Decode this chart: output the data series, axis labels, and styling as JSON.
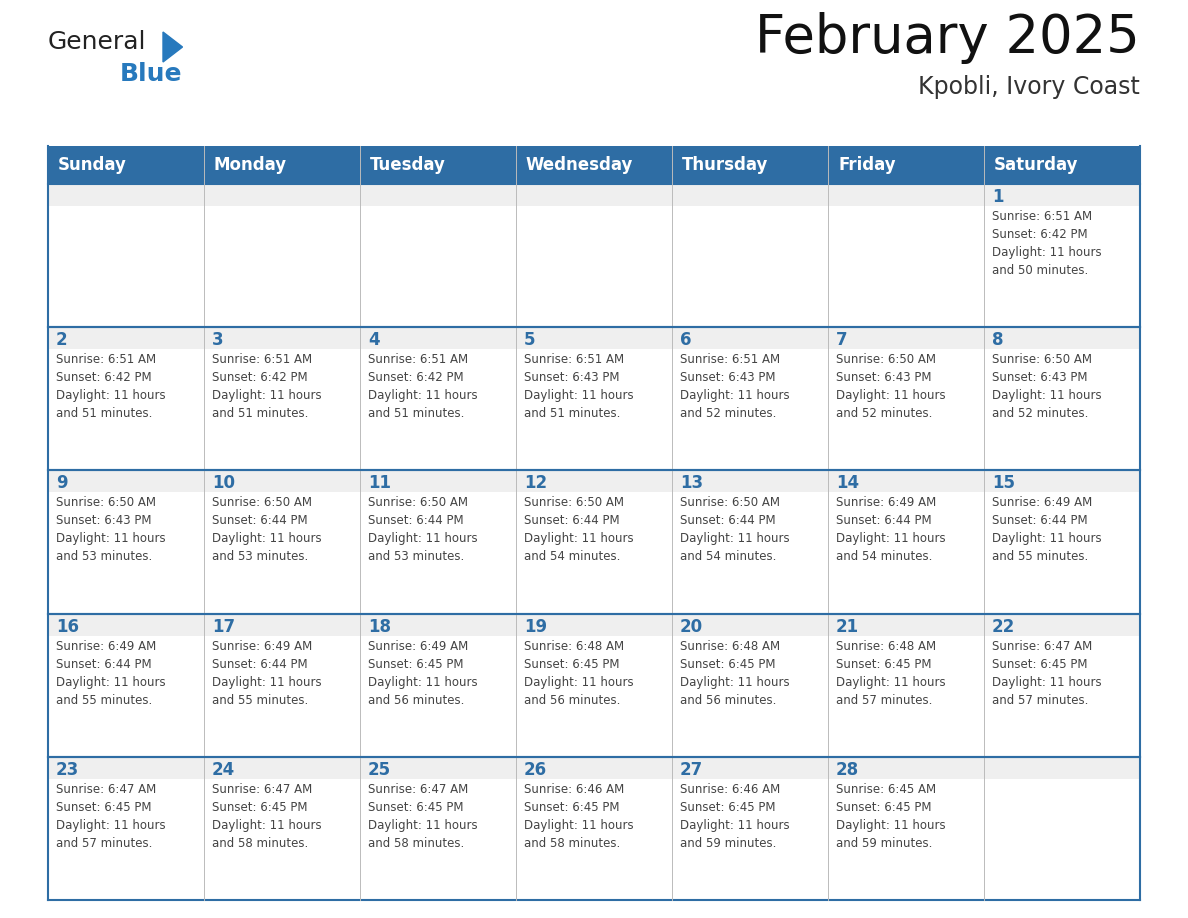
{
  "title": "February 2025",
  "subtitle": "Kpobli, Ivory Coast",
  "header_color": "#2E6DA4",
  "header_text_color": "#FFFFFF",
  "cell_bg_color": "#FFFFFF",
  "cell_day_bg_color": "#EFEFEF",
  "border_color": "#2E6DA4",
  "day_number_color": "#2E6DA4",
  "info_text_color": "#444444",
  "days_of_week": [
    "Sunday",
    "Monday",
    "Tuesday",
    "Wednesday",
    "Thursday",
    "Friday",
    "Saturday"
  ],
  "weeks": [
    [
      {
        "day": null,
        "info": null
      },
      {
        "day": null,
        "info": null
      },
      {
        "day": null,
        "info": null
      },
      {
        "day": null,
        "info": null
      },
      {
        "day": null,
        "info": null
      },
      {
        "day": null,
        "info": null
      },
      {
        "day": 1,
        "info": "Sunrise: 6:51 AM\nSunset: 6:42 PM\nDaylight: 11 hours\nand 50 minutes."
      }
    ],
    [
      {
        "day": 2,
        "info": "Sunrise: 6:51 AM\nSunset: 6:42 PM\nDaylight: 11 hours\nand 51 minutes."
      },
      {
        "day": 3,
        "info": "Sunrise: 6:51 AM\nSunset: 6:42 PM\nDaylight: 11 hours\nand 51 minutes."
      },
      {
        "day": 4,
        "info": "Sunrise: 6:51 AM\nSunset: 6:42 PM\nDaylight: 11 hours\nand 51 minutes."
      },
      {
        "day": 5,
        "info": "Sunrise: 6:51 AM\nSunset: 6:43 PM\nDaylight: 11 hours\nand 51 minutes."
      },
      {
        "day": 6,
        "info": "Sunrise: 6:51 AM\nSunset: 6:43 PM\nDaylight: 11 hours\nand 52 minutes."
      },
      {
        "day": 7,
        "info": "Sunrise: 6:50 AM\nSunset: 6:43 PM\nDaylight: 11 hours\nand 52 minutes."
      },
      {
        "day": 8,
        "info": "Sunrise: 6:50 AM\nSunset: 6:43 PM\nDaylight: 11 hours\nand 52 minutes."
      }
    ],
    [
      {
        "day": 9,
        "info": "Sunrise: 6:50 AM\nSunset: 6:43 PM\nDaylight: 11 hours\nand 53 minutes."
      },
      {
        "day": 10,
        "info": "Sunrise: 6:50 AM\nSunset: 6:44 PM\nDaylight: 11 hours\nand 53 minutes."
      },
      {
        "day": 11,
        "info": "Sunrise: 6:50 AM\nSunset: 6:44 PM\nDaylight: 11 hours\nand 53 minutes."
      },
      {
        "day": 12,
        "info": "Sunrise: 6:50 AM\nSunset: 6:44 PM\nDaylight: 11 hours\nand 54 minutes."
      },
      {
        "day": 13,
        "info": "Sunrise: 6:50 AM\nSunset: 6:44 PM\nDaylight: 11 hours\nand 54 minutes."
      },
      {
        "day": 14,
        "info": "Sunrise: 6:49 AM\nSunset: 6:44 PM\nDaylight: 11 hours\nand 54 minutes."
      },
      {
        "day": 15,
        "info": "Sunrise: 6:49 AM\nSunset: 6:44 PM\nDaylight: 11 hours\nand 55 minutes."
      }
    ],
    [
      {
        "day": 16,
        "info": "Sunrise: 6:49 AM\nSunset: 6:44 PM\nDaylight: 11 hours\nand 55 minutes."
      },
      {
        "day": 17,
        "info": "Sunrise: 6:49 AM\nSunset: 6:44 PM\nDaylight: 11 hours\nand 55 minutes."
      },
      {
        "day": 18,
        "info": "Sunrise: 6:49 AM\nSunset: 6:45 PM\nDaylight: 11 hours\nand 56 minutes."
      },
      {
        "day": 19,
        "info": "Sunrise: 6:48 AM\nSunset: 6:45 PM\nDaylight: 11 hours\nand 56 minutes."
      },
      {
        "day": 20,
        "info": "Sunrise: 6:48 AM\nSunset: 6:45 PM\nDaylight: 11 hours\nand 56 minutes."
      },
      {
        "day": 21,
        "info": "Sunrise: 6:48 AM\nSunset: 6:45 PM\nDaylight: 11 hours\nand 57 minutes."
      },
      {
        "day": 22,
        "info": "Sunrise: 6:47 AM\nSunset: 6:45 PM\nDaylight: 11 hours\nand 57 minutes."
      }
    ],
    [
      {
        "day": 23,
        "info": "Sunrise: 6:47 AM\nSunset: 6:45 PM\nDaylight: 11 hours\nand 57 minutes."
      },
      {
        "day": 24,
        "info": "Sunrise: 6:47 AM\nSunset: 6:45 PM\nDaylight: 11 hours\nand 58 minutes."
      },
      {
        "day": 25,
        "info": "Sunrise: 6:47 AM\nSunset: 6:45 PM\nDaylight: 11 hours\nand 58 minutes."
      },
      {
        "day": 26,
        "info": "Sunrise: 6:46 AM\nSunset: 6:45 PM\nDaylight: 11 hours\nand 58 minutes."
      },
      {
        "day": 27,
        "info": "Sunrise: 6:46 AM\nSunset: 6:45 PM\nDaylight: 11 hours\nand 59 minutes."
      },
      {
        "day": 28,
        "info": "Sunrise: 6:45 AM\nSunset: 6:45 PM\nDaylight: 11 hours\nand 59 minutes."
      },
      {
        "day": null,
        "info": null
      }
    ]
  ],
  "logo_general_color": "#222222",
  "logo_blue_color": "#2779BD",
  "title_fontsize": 38,
  "subtitle_fontsize": 17,
  "header_fontsize": 12,
  "day_number_fontsize": 12,
  "info_fontsize": 8.5
}
